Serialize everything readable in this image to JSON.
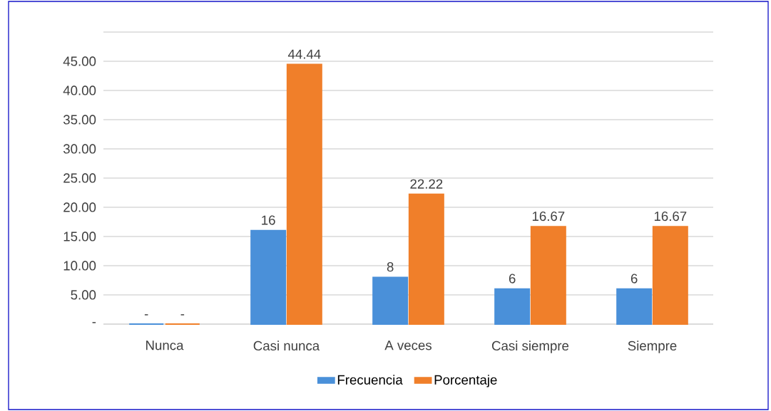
{
  "chart_data": {
    "type": "bar",
    "categories": [
      "Nunca",
      "Casi nunca",
      "A veces",
      "Casi siempre",
      "Siempre"
    ],
    "series": [
      {
        "name": "Frecuencia",
        "color": "#4a90d9",
        "values": [
          0,
          16,
          8,
          6,
          6
        ],
        "value_labels": [
          "-",
          "16",
          "8",
          "6",
          "6"
        ]
      },
      {
        "name": "Porcentaje",
        "color": "#f07f2a",
        "values": [
          0,
          44.44,
          22.22,
          16.67,
          16.67
        ],
        "value_labels": [
          "-",
          "44.44",
          "22.22",
          "16.67",
          "16.67"
        ]
      }
    ],
    "ylim": [
      0,
      50
    ],
    "yticks": [
      {
        "value": 0,
        "label": "-"
      },
      {
        "value": 5,
        "label": "5.00"
      },
      {
        "value": 10,
        "label": "10.00"
      },
      {
        "value": 15,
        "label": "15.00"
      },
      {
        "value": 20,
        "label": "20.00"
      },
      {
        "value": 25,
        "label": "25.00"
      },
      {
        "value": 30,
        "label": "30.00"
      },
      {
        "value": 35,
        "label": "35.00"
      },
      {
        "value": 40,
        "label": "40.00"
      },
      {
        "value": 45,
        "label": "45.00"
      },
      {
        "value": 50,
        "label": null
      }
    ],
    "grid": "y",
    "legend": "bottom"
  }
}
